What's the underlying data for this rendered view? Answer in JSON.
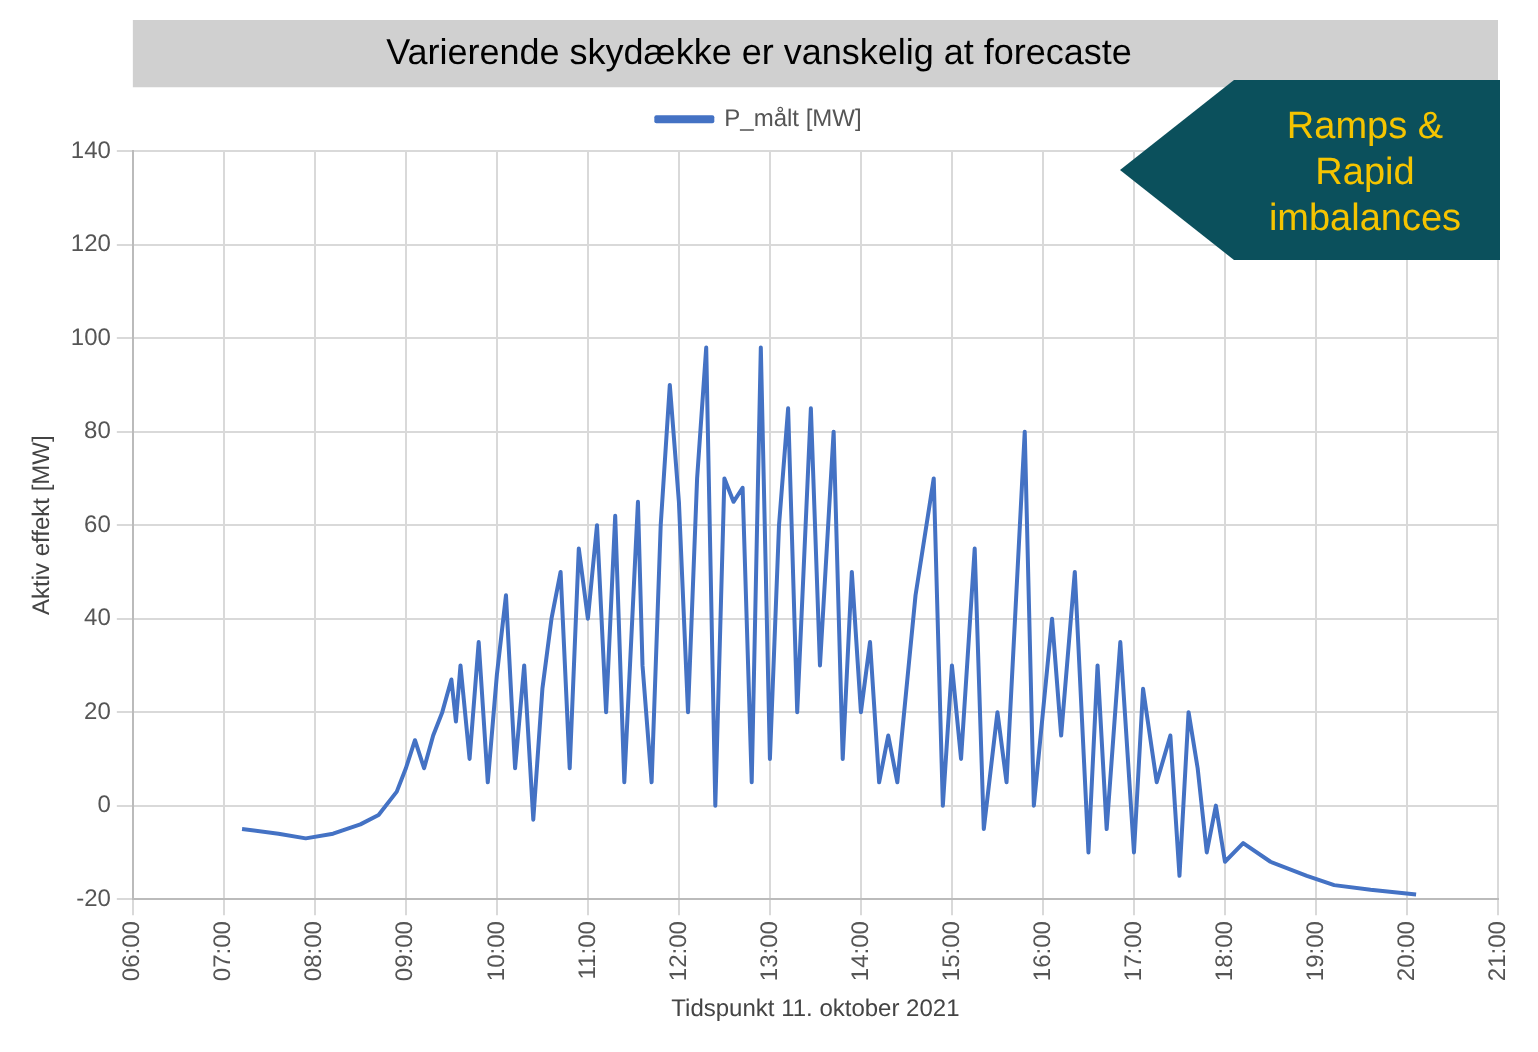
{
  "chart_data": {
    "type": "line",
    "title": "Varierende skydække er vanskelig at forecaste",
    "xlabel": "Tidspunkt 11. oktober 2021",
    "ylabel": "Aktiv effekt [MW]",
    "annotations": [
      "Ramps & Rapid imbalances"
    ],
    "xlim": [
      6,
      21
    ],
    "xticks": [
      {
        "value": 6,
        "label": "06:00"
      },
      {
        "value": 7,
        "label": "07:00"
      },
      {
        "value": 8,
        "label": "08:00"
      },
      {
        "value": 9,
        "label": "09:00"
      },
      {
        "value": 10,
        "label": "10:00"
      },
      {
        "value": 11,
        "label": "11:00"
      },
      {
        "value": 12,
        "label": "12:00"
      },
      {
        "value": 13,
        "label": "13:00"
      },
      {
        "value": 14,
        "label": "14:00"
      },
      {
        "value": 15,
        "label": "15:00"
      },
      {
        "value": 16,
        "label": "16:00"
      },
      {
        "value": 17,
        "label": "17:00"
      },
      {
        "value": 18,
        "label": "18:00"
      },
      {
        "value": 19,
        "label": "19:00"
      },
      {
        "value": 20,
        "label": "20:00"
      },
      {
        "value": 21,
        "label": "21:00"
      }
    ],
    "ylim": [
      -20,
      140
    ],
    "yticks": [
      -20,
      0,
      20,
      40,
      60,
      80,
      100,
      120,
      140
    ],
    "grid": true,
    "legend": "top",
    "marker": "none",
    "line_style": "solid",
    "x": [
      7.2,
      7.6,
      7.9,
      8.2,
      8.5,
      8.7,
      8.9,
      9.0,
      9.1,
      9.2,
      9.3,
      9.4,
      9.5,
      9.55,
      9.6,
      9.7,
      9.8,
      9.9,
      10.0,
      10.1,
      10.2,
      10.3,
      10.4,
      10.5,
      10.6,
      10.7,
      10.8,
      10.9,
      11.0,
      11.1,
      11.2,
      11.3,
      11.4,
      11.5,
      11.55,
      11.6,
      11.7,
      11.8,
      11.9,
      12.0,
      12.1,
      12.2,
      12.3,
      12.4,
      12.5,
      12.6,
      12.7,
      12.8,
      12.9,
      13.0,
      13.1,
      13.2,
      13.3,
      13.45,
      13.55,
      13.7,
      13.8,
      13.9,
      14.0,
      14.1,
      14.2,
      14.3,
      14.4,
      14.6,
      14.8,
      14.9,
      15.0,
      15.1,
      15.25,
      15.35,
      15.5,
      15.6,
      15.8,
      15.9,
      16.1,
      16.2,
      16.35,
      16.5,
      16.6,
      16.7,
      16.85,
      17.0,
      17.1,
      17.25,
      17.4,
      17.5,
      17.6,
      17.7,
      17.8,
      17.9,
      18.0,
      18.2,
      18.5,
      18.9,
      19.2,
      19.6,
      20.1
    ],
    "series": [
      {
        "name": "P_målt [MW]",
        "color": "#4472c4",
        "values": [
          -5,
          -6,
          -7,
          -6,
          -4,
          -2,
          3,
          8,
          14,
          8,
          15,
          20,
          27,
          18,
          30,
          10,
          35,
          5,
          28,
          45,
          8,
          30,
          -3,
          25,
          40,
          50,
          8,
          55,
          40,
          60,
          20,
          62,
          5,
          45,
          65,
          30,
          5,
          60,
          90,
          65,
          20,
          70,
          98,
          0,
          70,
          65,
          68,
          5,
          98,
          10,
          60,
          85,
          20,
          85,
          30,
          80,
          10,
          50,
          20,
          35,
          5,
          15,
          5,
          45,
          70,
          0,
          30,
          10,
          55,
          -5,
          20,
          5,
          80,
          0,
          40,
          15,
          50,
          -10,
          30,
          -5,
          35,
          -10,
          25,
          5,
          15,
          -15,
          20,
          8,
          -10,
          0,
          -12,
          -8,
          -12,
          -15,
          -17,
          -18,
          -19
        ]
      }
    ]
  }
}
